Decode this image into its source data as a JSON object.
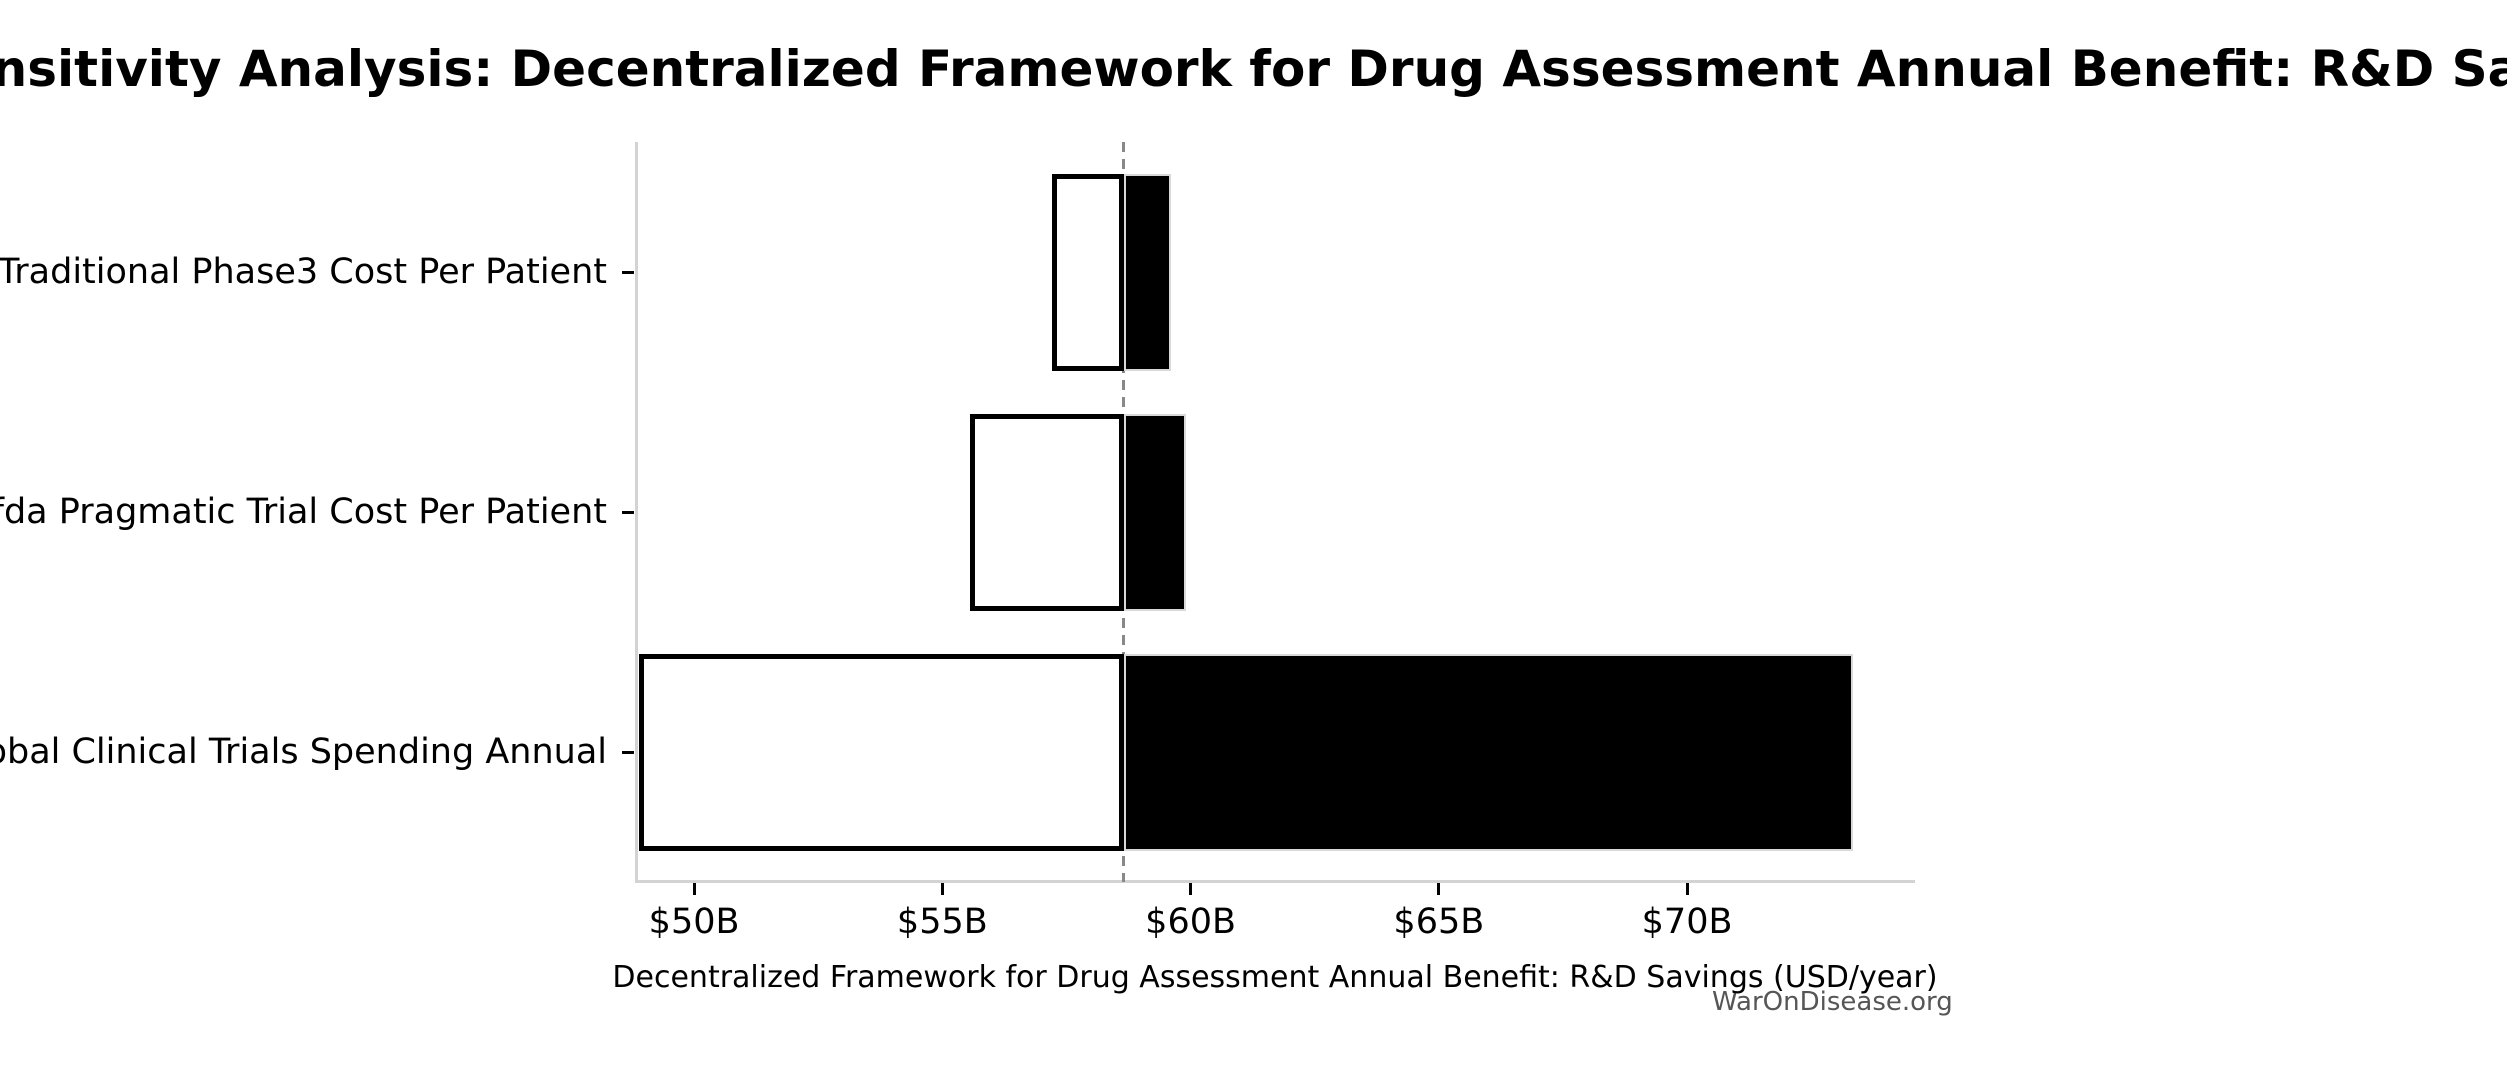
{
  "chart_data": {
    "type": "bar",
    "variant": "tornado-sensitivity",
    "orientation": "horizontal",
    "title": "Sensitivity Analysis: Decentralized Framework for Drug Assessment Annual Benefit: R&D Savings",
    "xlabel": "Decentralized Framework for Drug Assessment Annual Benefit: R&D Savings (USD/year)",
    "watermark": "WarOnDisease.org",
    "categories": [
      "Traditional Phase3 Cost Per Patient",
      "Dfda Pragmatic Trial Cost Per Patient",
      "Global Clinical Trials Spending Annual"
    ],
    "baseline": 58.65,
    "bars": [
      {
        "category": "Traditional Phase3 Cost Per Patient",
        "low": 57.2,
        "high": 59.6
      },
      {
        "category": "Dfda Pragmatic Trial Cost Per Patient",
        "low": 55.55,
        "high": 59.9
      },
      {
        "category": "Global Clinical Trials Spending Annual",
        "low": 48.9,
        "high": 73.35
      }
    ],
    "x_ticks": [
      {
        "value": 50,
        "label": "$50B"
      },
      {
        "value": 55,
        "label": "$55B"
      },
      {
        "value": 60,
        "label": "$60B"
      },
      {
        "value": 65,
        "label": "$65B"
      },
      {
        "value": 70,
        "label": "$70B"
      }
    ],
    "xlim": [
      48.85,
      74.55
    ],
    "grid": false,
    "legend": "none",
    "colors": {
      "low_fill": "#ffffff",
      "low_edge": "#000000",
      "high_fill": "#000000",
      "high_edge": "#d9d9d9",
      "baseline_line": "#888888",
      "spine": "#d3d3d3",
      "tick_mark": "#000000",
      "text": "#000000",
      "watermark_text": "#565656",
      "background": "#ffffff"
    }
  }
}
